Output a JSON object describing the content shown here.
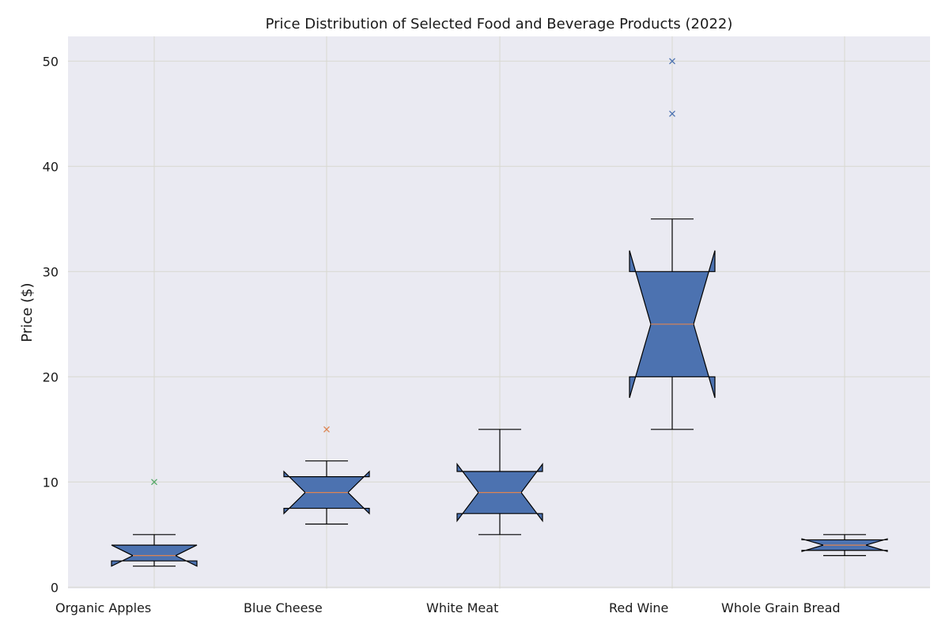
{
  "chart_data": {
    "type": "box",
    "title": "Price Distribution of Selected Food and Beverage Products (2022)",
    "xlabel": "",
    "ylabel": "Price ($)",
    "ylim": [
      -0.3,
      52.3
    ],
    "yticks": [
      0,
      10,
      20,
      30,
      40,
      50
    ],
    "grid": true,
    "notched": true,
    "box_color": "#4c72b0",
    "median_color": "#dd8452",
    "background_color": "#eaeaf2",
    "grid_color": "#d8d8d0",
    "categories": [
      "Organic Apples",
      "Blue Cheese",
      "White Meat",
      "Red Wine",
      "Whole Grain Bread"
    ],
    "boxes": [
      {
        "whisker_low": 2,
        "q1": 2.5,
        "median": 3,
        "q3": 4,
        "whisker_high": 5,
        "notch_low": 2,
        "notch_high": 4,
        "outliers": [
          10
        ],
        "outlier_color": "#55a868"
      },
      {
        "whisker_low": 6,
        "q1": 7.5,
        "median": 9,
        "q3": 10.5,
        "whisker_high": 12,
        "notch_low": 7,
        "notch_high": 11,
        "outliers": [
          15
        ],
        "outlier_color": "#dd8452"
      },
      {
        "whisker_low": 5,
        "q1": 7,
        "median": 9,
        "q3": 11,
        "whisker_high": 15,
        "notch_low": 6.3,
        "notch_high": 11.7,
        "outliers": [],
        "outlier_color": "#4c72b0"
      },
      {
        "whisker_low": 15,
        "q1": 20,
        "median": 25,
        "q3": 30,
        "whisker_high": 35,
        "notch_low": 18,
        "notch_high": 32,
        "outliers": [
          45,
          50
        ],
        "outlier_color": "#4c72b0"
      },
      {
        "whisker_low": 3,
        "q1": 3.5,
        "median": 4,
        "q3": 4.5,
        "whisker_high": 5,
        "notch_low": 3.4,
        "notch_high": 4.6,
        "outliers": [],
        "outlier_color": "#4c72b0"
      }
    ]
  }
}
